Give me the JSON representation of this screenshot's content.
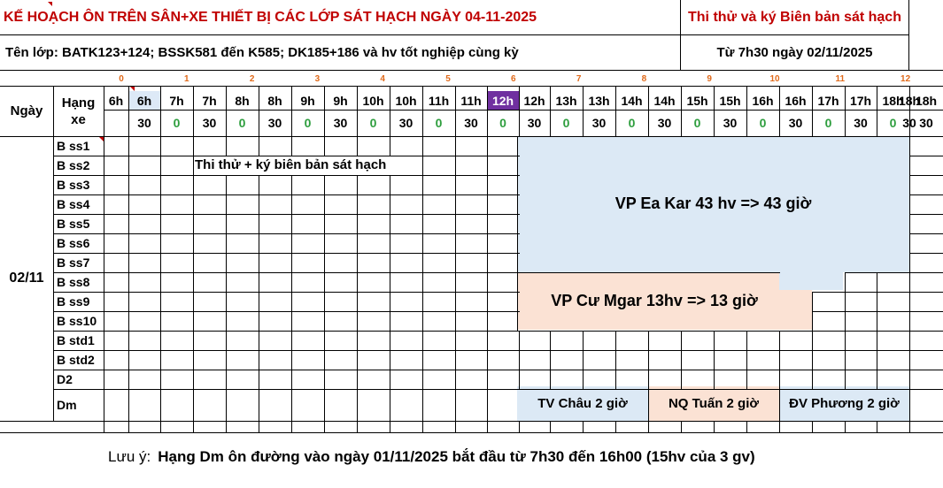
{
  "header": {
    "title": "KẾ HOẠCH ÔN TRÊN SÂN+XE THIẾT BỊ CÁC LỚP SÁT HẠCH NGÀY 04-11-2025",
    "right_title": "Thi thử và ký Biên bản sát hạch",
    "class_info": "Tên lớp: BATK123+124; BSSK581 đến K585; DK185+186 và hv tốt nghiệp cùng kỳ",
    "start_info": "Từ 7h30 ngày 02/11/2025"
  },
  "table": {
    "col_ngay": "Ngày",
    "col_hang": "Hạng xe",
    "date": "02/11",
    "index_numbers": [
      "0",
      "1",
      "2",
      "3",
      "4",
      "5",
      "6",
      "7",
      "8",
      "9",
      "10",
      "11",
      "12"
    ],
    "hours": [
      "6h",
      "6h",
      "7h",
      "7h",
      "8h",
      "8h",
      "9h",
      "9h",
      "10h",
      "10h",
      "11h",
      "11h",
      "12h",
      "12h",
      "13h",
      "13h",
      "14h",
      "14h",
      "15h",
      "15h",
      "16h",
      "16h",
      "17h",
      "17h",
      "18h",
      "18h"
    ],
    "minutes": [
      "",
      "30",
      "0",
      "30",
      "0",
      "30",
      "0",
      "30",
      "0",
      "30",
      "0",
      "30",
      "0",
      "30",
      "0",
      "30",
      "0",
      "30",
      "0",
      "30",
      "0",
      "30",
      "0",
      "30",
      "0",
      "30"
    ],
    "rows": [
      "B ss1",
      "B ss2",
      "B ss3",
      "B ss4",
      "B ss5",
      "B ss6",
      "B ss7",
      "B ss8",
      "B ss9",
      "B ss10",
      "B std1",
      "B std2",
      "D2",
      "Dm"
    ]
  },
  "blocks": {
    "trial": "Thi thử + ký biên bản sát hạch",
    "eakar": "VP Ea Kar 43 hv => 43 giờ",
    "cumgar": "VP Cư Mgar 13hv => 13 giờ",
    "chau": "TV Châu 2 giờ",
    "tuan": "NQ Tuấn 2 giờ",
    "phuong": "ĐV Phương 2 giờ"
  },
  "footer": {
    "prefix": "Lưu ý:",
    "text": "Hạng Dm ôn đường vào ngày 01/11/2025 bắt đầu từ 7h30 đến 16h00 (15hv của 3 gv)"
  },
  "colors": {
    "blue": "#dce9f5",
    "peach": "#fbe2d4",
    "purple": "#7030a0",
    "header_blue": "#dde9f7"
  }
}
